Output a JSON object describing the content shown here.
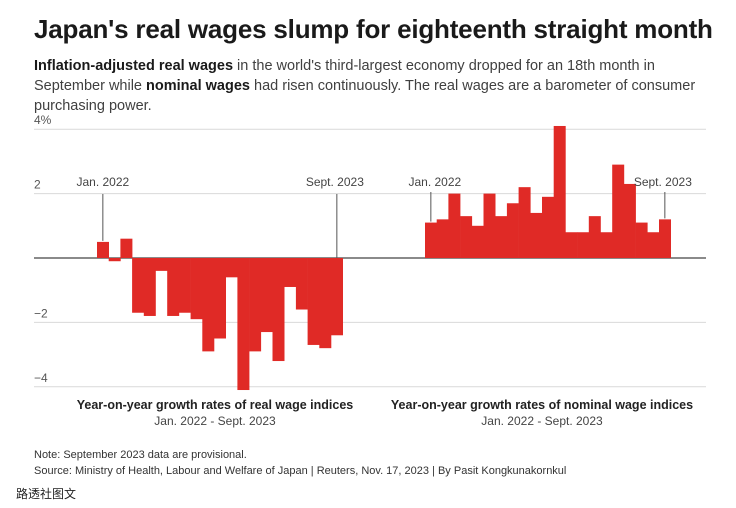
{
  "header": {
    "title": "Japan's real wages slump for eighteenth straight month",
    "subtitle_parts": [
      {
        "text": "Inflation-adjusted real wages",
        "bold": true
      },
      {
        "text": " in the world's third-largest economy dropped for an 18th month in September while ",
        "bold": false
      },
      {
        "text": "nominal wages",
        "bold": true
      },
      {
        "text": " had risen continuously. The real wages are a barometer of consumer purchasing power.",
        "bold": false
      }
    ]
  },
  "chart_data": {
    "type": "bar",
    "ylim": [
      -4.1,
      4.2
    ],
    "yticks": [
      {
        "value": 4,
        "label": "4%"
      },
      {
        "value": 2,
        "label": "2"
      },
      {
        "value": 0,
        "label": ""
      },
      {
        "value": -2,
        "label": "−2"
      },
      {
        "value": -4,
        "label": "−4"
      }
    ],
    "grid": true,
    "panels": [
      {
        "title": "Year-on-year growth rates of real wage indices",
        "range_label": "Jan. 2022 - Sept. 2023",
        "start_annotation": "Jan. 2022",
        "end_annotation": "Sept. 2023",
        "color": "#e02a26",
        "values": [
          0.5,
          -0.1,
          0.6,
          -1.7,
          -1.8,
          -0.4,
          -1.8,
          -1.7,
          -1.9,
          -2.9,
          -2.5,
          -0.6,
          -4.1,
          -2.9,
          -2.3,
          -3.2,
          -0.9,
          -1.6,
          -2.7,
          -2.8,
          -2.4
        ]
      },
      {
        "title": "Year-on-year growth rates of nominal wage indices",
        "range_label": "Jan. 2022 - Sept. 2023",
        "start_annotation": "Jan. 2022",
        "end_annotation": "Sept. 2023",
        "color": "#e02a26",
        "values": [
          1.1,
          1.2,
          2.0,
          1.3,
          1.0,
          2.0,
          1.3,
          1.7,
          2.2,
          1.4,
          1.9,
          4.1,
          0.8,
          0.8,
          1.3,
          0.8,
          2.9,
          2.3,
          1.1,
          0.8,
          1.2
        ]
      }
    ]
  },
  "footer": {
    "note": "Note: September 2023 data are provisional.",
    "source": "Source: Ministry of Health, Labour and Welfare of Japan | Reuters, Nov. 17, 2023 | By Pasit Kongkunakornkul",
    "watermark": "路透社图文"
  }
}
